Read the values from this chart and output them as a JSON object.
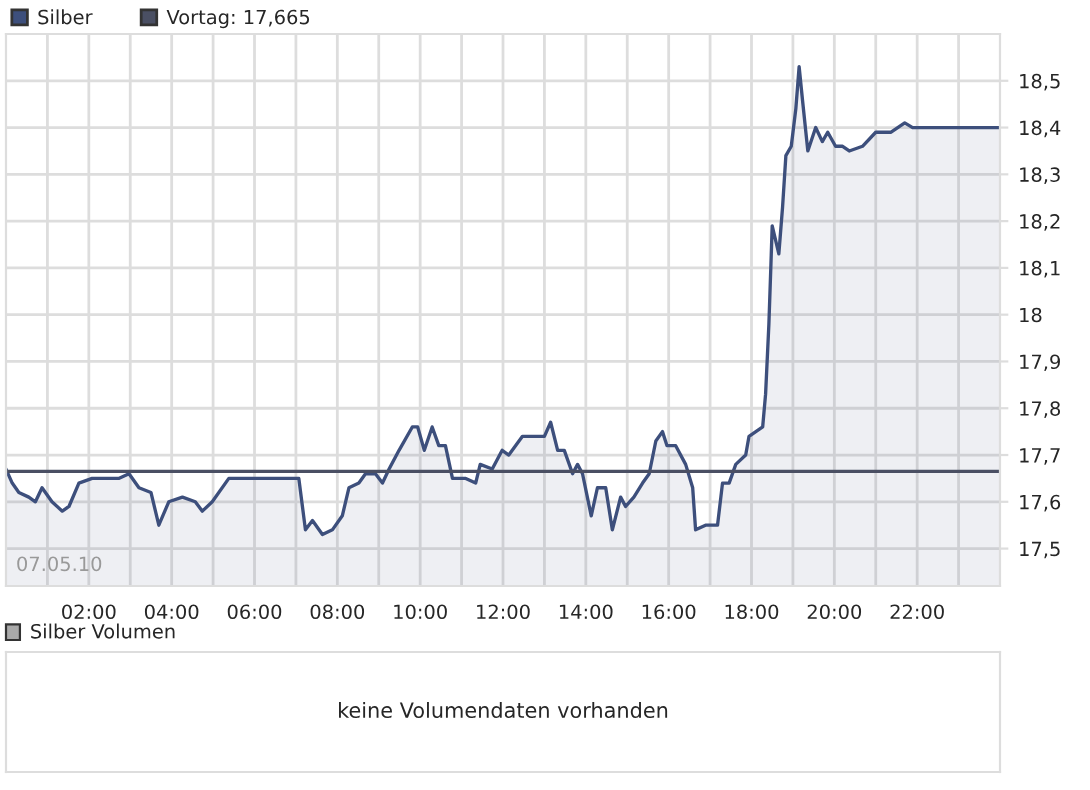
{
  "chart_data": [
    {
      "type": "area",
      "legend": "top left",
      "grid": true,
      "x": [
        0,
        0.15,
        0.31,
        0.55,
        0.71,
        0.87,
        1.11,
        1.36,
        1.52,
        1.76,
        2.08,
        2.72,
        2.97,
        3.21,
        3.5,
        3.69,
        3.93,
        4.26,
        4.57,
        4.74,
        4.98,
        5.38,
        7.07,
        7.23,
        7.4,
        7.64,
        7.88,
        8.12,
        8.28,
        8.52,
        8.68,
        8.92,
        9.09,
        9.25,
        9.49,
        9.81,
        9.94,
        10.1,
        10.29,
        10.45,
        10.61,
        10.78,
        11.1,
        11.34,
        11.45,
        11.74,
        11.98,
        12.14,
        12.47,
        12.87,
        13.0,
        13.15,
        13.32,
        13.48,
        13.68,
        13.8,
        13.92,
        14.13,
        14.28,
        14.48,
        14.64,
        14.84,
        14.96,
        15.16,
        15.37,
        15.53,
        15.69,
        15.85,
        15.96,
        16.17,
        16.41,
        16.58,
        16.65,
        16.89,
        17.18,
        17.3,
        17.46,
        17.62,
        17.86,
        17.94,
        18.27,
        18.34,
        18.42,
        18.47,
        18.5,
        18.66,
        18.75,
        18.83,
        18.96,
        19.07,
        19.15,
        19.23,
        19.36,
        19.55,
        19.71,
        19.84,
        20.03,
        20.2,
        20.36,
        20.68,
        21.0,
        21.37,
        21.7,
        21.89,
        24.0
      ],
      "series": [
        {
          "name": "Silber",
          "color": "#3d4f7c",
          "values": [
            17.67,
            17.64,
            17.62,
            17.61,
            17.6,
            17.63,
            17.6,
            17.58,
            17.59,
            17.64,
            17.65,
            17.65,
            17.66,
            17.63,
            17.62,
            17.55,
            17.6,
            17.61,
            17.6,
            17.58,
            17.6,
            17.65,
            17.65,
            17.54,
            17.56,
            17.53,
            17.54,
            17.57,
            17.63,
            17.64,
            17.66,
            17.66,
            17.64,
            17.67,
            17.71,
            17.76,
            17.76,
            17.71,
            17.76,
            17.72,
            17.72,
            17.65,
            17.65,
            17.64,
            17.68,
            17.67,
            17.71,
            17.7,
            17.74,
            17.74,
            17.74,
            17.77,
            17.71,
            17.71,
            17.66,
            17.68,
            17.66,
            17.57,
            17.63,
            17.63,
            17.54,
            17.61,
            17.59,
            17.61,
            17.64,
            17.66,
            17.73,
            17.75,
            17.72,
            17.72,
            17.68,
            17.63,
            17.54,
            17.55,
            17.55,
            17.64,
            17.64,
            17.68,
            17.7,
            17.74,
            17.76,
            17.83,
            17.98,
            18.11,
            18.19,
            18.13,
            18.23,
            18.34,
            18.36,
            18.44,
            18.53,
            18.46,
            18.35,
            18.4,
            18.37,
            18.39,
            18.36,
            18.36,
            18.35,
            18.36,
            18.39,
            18.39,
            18.41,
            18.4,
            18.4
          ]
        }
      ],
      "ref_lines": [
        {
          "axis": "y",
          "value": 17.665,
          "label": "Vortag: 17,665",
          "color": "#4a4f63"
        }
      ],
      "xlim": [
        0,
        24
      ],
      "xticks": [
        {
          "value": 1,
          "label": null
        },
        {
          "value": 2,
          "label": "02:00"
        },
        {
          "value": 3,
          "label": null
        },
        {
          "value": 4,
          "label": "04:00"
        },
        {
          "value": 5,
          "label": null
        },
        {
          "value": 6,
          "label": "06:00"
        },
        {
          "value": 7,
          "label": null
        },
        {
          "value": 8,
          "label": "08:00"
        },
        {
          "value": 9,
          "label": null
        },
        {
          "value": 10,
          "label": "10:00"
        },
        {
          "value": 11,
          "label": null
        },
        {
          "value": 12,
          "label": "12:00"
        },
        {
          "value": 13,
          "label": null
        },
        {
          "value": 14,
          "label": "14:00"
        },
        {
          "value": 15,
          "label": null
        },
        {
          "value": 16,
          "label": "16:00"
        },
        {
          "value": 17,
          "label": null
        },
        {
          "value": 18,
          "label": "18:00"
        },
        {
          "value": 19,
          "label": null
        },
        {
          "value": 20,
          "label": "20:00"
        },
        {
          "value": 21,
          "label": null
        },
        {
          "value": 22,
          "label": "22:00"
        },
        {
          "value": 23,
          "label": null
        }
      ],
      "ylim": [
        17.42,
        18.6
      ],
      "yticks": [
        {
          "value": 17.5,
          "label": "17,5"
        },
        {
          "value": 17.6,
          "label": "17,6"
        },
        {
          "value": 17.7,
          "label": "17,7"
        },
        {
          "value": 17.8,
          "label": "17,8"
        },
        {
          "value": 17.9,
          "label": "17,9"
        },
        {
          "value": 18.0,
          "label": "18"
        },
        {
          "value": 18.1,
          "label": "18,1"
        },
        {
          "value": 18.2,
          "label": "18,2"
        },
        {
          "value": 18.3,
          "label": "18,3"
        },
        {
          "value": 18.4,
          "label": "18,4"
        },
        {
          "value": 18.5,
          "label": "18,5"
        }
      ],
      "annotations": [
        "07.05.10"
      ]
    },
    {
      "type": "other",
      "title": "Silber Volumen",
      "annotations": [
        "keine Volumendaten vorhanden"
      ]
    }
  ]
}
